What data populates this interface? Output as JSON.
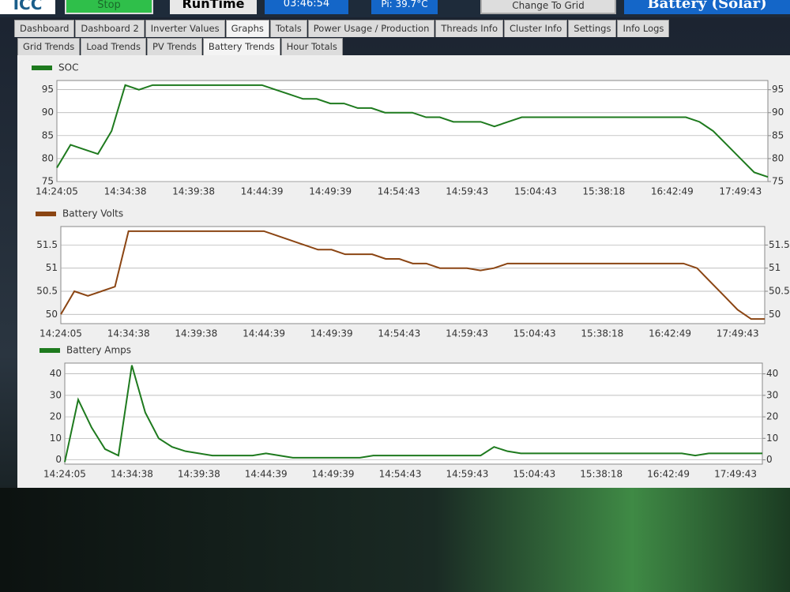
{
  "header": {
    "logo": "ICC",
    "stop": "Stop",
    "runtime_label": "RunTime",
    "runtime": "03:46:54",
    "pi_temp": "Pi: 39.7°C",
    "change_mode": "Change To Grid",
    "mode": "Battery (Solar)"
  },
  "tabs": [
    "Dashboard",
    "Dashboard 2",
    "Inverter Values",
    "Graphs",
    "Totals",
    "Power Usage / Production",
    "Threads Info",
    "Cluster Info",
    "Settings",
    "Info Logs"
  ],
  "subtabs": [
    "Grid Trends",
    "Load Trends",
    "PV Trends",
    "Battery Trends",
    "Hour Totals"
  ],
  "chart_data": [
    {
      "type": "line",
      "categories": [
        "14:24:05",
        null,
        null,
        null,
        null,
        "14:34:38",
        null,
        null,
        null,
        null,
        "14:39:38",
        null,
        null,
        null,
        null,
        "14:44:39",
        null,
        null,
        null,
        null,
        "14:49:39",
        null,
        null,
        null,
        null,
        "14:54:43",
        null,
        null,
        null,
        null,
        "14:59:43",
        null,
        null,
        null,
        null,
        "15:04:43",
        null,
        null,
        null,
        null,
        "15:38:18",
        null,
        null,
        null,
        null,
        "16:42:49",
        null,
        null,
        null,
        null,
        "17:49:43",
        null,
        null
      ],
      "series": [
        {
          "name": "SOC",
          "color": "#1e7a1e",
          "values": [
            78,
            83,
            82,
            81,
            86,
            96,
            95,
            96,
            96,
            96,
            96,
            96,
            96,
            96,
            96,
            96,
            95,
            94,
            93,
            93,
            92,
            92,
            91,
            91,
            90,
            90,
            90,
            89,
            89,
            88,
            88,
            88,
            87,
            88,
            89,
            89,
            89,
            89,
            89,
            89,
            89,
            89,
            89,
            89,
            89,
            89,
            89,
            88,
            86,
            83,
            80,
            77,
            76
          ]
        }
      ],
      "ylim": [
        75,
        97
      ],
      "yticks": [
        75,
        80,
        85,
        90,
        95
      ],
      "y2lim": [
        75,
        97
      ],
      "y2ticks": [
        75,
        80,
        85,
        90,
        95
      ],
      "grid": true
    },
    {
      "type": "line",
      "categories": [
        "14:24:05",
        null,
        null,
        null,
        null,
        "14:34:38",
        null,
        null,
        null,
        null,
        "14:39:38",
        null,
        null,
        null,
        null,
        "14:44:39",
        null,
        null,
        null,
        null,
        "14:49:39",
        null,
        null,
        null,
        null,
        "14:54:43",
        null,
        null,
        null,
        null,
        "14:59:43",
        null,
        null,
        null,
        null,
        "15:04:43",
        null,
        null,
        null,
        null,
        "15:38:18",
        null,
        null,
        null,
        null,
        "16:42:49",
        null,
        null,
        null,
        null,
        "17:49:43",
        null,
        null
      ],
      "series": [
        {
          "name": "Battery Volts",
          "color": "#8b4513",
          "values": [
            50,
            50.5,
            50.4,
            50.5,
            50.6,
            51.8,
            51.8,
            51.8,
            51.8,
            51.8,
            51.8,
            51.8,
            51.8,
            51.8,
            51.8,
            51.8,
            51.7,
            51.6,
            51.5,
            51.4,
            51.4,
            51.3,
            51.3,
            51.3,
            51.2,
            51.2,
            51.1,
            51.1,
            51,
            51,
            51,
            50.95,
            51,
            51.1,
            51.1,
            51.1,
            51.1,
            51.1,
            51.1,
            51.1,
            51.1,
            51.1,
            51.1,
            51.1,
            51.1,
            51.1,
            51.1,
            51,
            50.7,
            50.4,
            50.1,
            49.9,
            49.9
          ]
        }
      ],
      "ylim": [
        49.8,
        51.9
      ],
      "yticks": [
        50,
        50.5,
        51,
        51.5
      ],
      "y2lim": [
        49.8,
        51.9
      ],
      "y2ticks": [
        50,
        50.5,
        51,
        51.5
      ],
      "grid": true
    },
    {
      "type": "line",
      "categories": [
        "14:24:05",
        null,
        null,
        null,
        null,
        "14:34:38",
        null,
        null,
        null,
        null,
        "14:39:38",
        null,
        null,
        null,
        null,
        "14:44:39",
        null,
        null,
        null,
        null,
        "14:49:39",
        null,
        null,
        null,
        null,
        "14:54:43",
        null,
        null,
        null,
        null,
        "14:59:43",
        null,
        null,
        null,
        null,
        "15:04:43",
        null,
        null,
        null,
        null,
        "15:38:18",
        null,
        null,
        null,
        null,
        "16:42:49",
        null,
        null,
        null,
        null,
        "17:49:43",
        null,
        null
      ],
      "series": [
        {
          "name": "Battery Amps",
          "color": "#1e7a1e",
          "values": [
            -1,
            28,
            15,
            5,
            2,
            44,
            22,
            10,
            6,
            4,
            3,
            2,
            2,
            2,
            2,
            3,
            2,
            1,
            1,
            1,
            1,
            1,
            1,
            2,
            2,
            2,
            2,
            2,
            2,
            2,
            2,
            2,
            6,
            4,
            3,
            3,
            3,
            3,
            3,
            3,
            3,
            3,
            3,
            3,
            3,
            3,
            3,
            2,
            3,
            3,
            3,
            3,
            3
          ]
        }
      ],
      "ylim": [
        -2,
        45
      ],
      "yticks": [
        0,
        10,
        20,
        30,
        40
      ],
      "y2lim": [
        -2,
        45
      ],
      "y2ticks": [
        0,
        10,
        20,
        30,
        40
      ],
      "grid": true
    }
  ]
}
